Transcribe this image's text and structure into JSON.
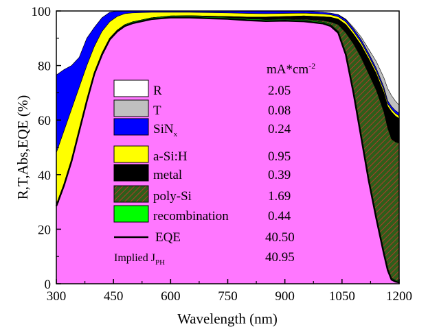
{
  "chart_data": {
    "type": "area",
    "xlabel": "Wavelength (nm)",
    "ylabel": "R,T,Abs,EQE (%)",
    "xlim": [
      300,
      1200
    ],
    "ylim": [
      0,
      100
    ],
    "xticks": [
      300,
      450,
      600,
      750,
      900,
      1050,
      1200
    ],
    "yticks": [
      0,
      20,
      40,
      60,
      80,
      100
    ],
    "x": [
      300,
      320,
      340,
      360,
      380,
      400,
      420,
      440,
      460,
      480,
      500,
      550,
      600,
      650,
      700,
      750,
      800,
      850,
      900,
      950,
      1000,
      1020,
      1040,
      1060,
      1080,
      1100,
      1120,
      1140,
      1160,
      1170,
      1180,
      1190,
      1200
    ],
    "series": [
      {
        "name": "EQE",
        "values": [
          28.5,
          36.0,
          45.0,
          56.0,
          67.0,
          77.0,
          84.0,
          89.5,
          92.5,
          94.5,
          95.5,
          97.0,
          97.6,
          97.6,
          97.3,
          97.1,
          96.6,
          96.3,
          96.4,
          96.2,
          95.4,
          94.5,
          92.0,
          84.0,
          70.0,
          54.0,
          38.0,
          24.0,
          11.0,
          5.0,
          1.5,
          0.8,
          0.5
        ]
      },
      {
        "name": "recombination",
        "values": [
          29.0,
          36.6,
          45.6,
          56.5,
          67.6,
          77.6,
          84.6,
          90.0,
          93.0,
          95.0,
          96.0,
          97.5,
          98.1,
          98.1,
          97.8,
          97.6,
          97.1,
          96.8,
          96.9,
          96.7,
          95.9,
          95.0,
          92.5,
          84.5,
          70.5,
          54.5,
          38.5,
          24.5,
          11.5,
          5.5,
          2.0,
          1.3,
          1.0
        ]
      },
      {
        "name": "poly-Si",
        "values": [
          29.0,
          36.6,
          45.6,
          56.5,
          67.6,
          77.6,
          84.6,
          90.0,
          93.0,
          95.0,
          96.0,
          97.5,
          98.1,
          98.1,
          97.8,
          97.6,
          97.2,
          97.0,
          97.1,
          97.0,
          96.5,
          96.0,
          95.0,
          92.0,
          88.0,
          83.0,
          77.0,
          71.0,
          63.0,
          57.0,
          53.0,
          52.0,
          51.5
        ]
      },
      {
        "name": "metal",
        "values": [
          29.0,
          36.6,
          45.6,
          56.5,
          67.6,
          77.6,
          84.6,
          90.0,
          93.0,
          95.0,
          96.0,
          97.5,
          98.2,
          98.3,
          98.1,
          98.0,
          97.8,
          97.8,
          98.0,
          98.2,
          97.9,
          97.7,
          97.0,
          95.0,
          91.5,
          87.5,
          82.5,
          77.0,
          70.0,
          65.0,
          63.0,
          61.5,
          60.5
        ]
      },
      {
        "name": "a-Si:H",
        "values": [
          48.0,
          56.0,
          64.0,
          72.0,
          80.0,
          87.0,
          92.5,
          96.0,
          98.0,
          99.0,
          99.3,
          99.5,
          99.5,
          99.5,
          99.4,
          99.3,
          99.1,
          99.0,
          99.1,
          99.2,
          98.9,
          98.6,
          97.9,
          96.0,
          92.5,
          88.5,
          83.5,
          78.0,
          71.0,
          66.0,
          64.0,
          62.5,
          61.5
        ]
      },
      {
        "name": "SiNx",
        "values": [
          76.5,
          78.5,
          80.0,
          83.0,
          90.0,
          94.0,
          97.5,
          99.5,
          100.0,
          100.0,
          100.0,
          100.0,
          100.0,
          100.0,
          100.0,
          100.0,
          100.0,
          100.0,
          100.0,
          100.0,
          99.5,
          99.2,
          98.6,
          96.8,
          93.5,
          89.5,
          84.5,
          79.0,
          72.0,
          67.0,
          65.0,
          63.5,
          62.5
        ]
      },
      {
        "name": "T",
        "values": [
          76.5,
          78.5,
          80.0,
          83.0,
          90.0,
          94.0,
          97.5,
          99.5,
          100.0,
          100.0,
          100.0,
          100.0,
          100.0,
          100.0,
          100.0,
          100.0,
          100.0,
          100.0,
          100.0,
          100.0,
          99.5,
          99.2,
          98.7,
          97.0,
          94.0,
          90.5,
          86.0,
          81.5,
          75.5,
          71.5,
          69.0,
          67.0,
          65.5
        ]
      },
      {
        "name": "R",
        "values": [
          100,
          100,
          100,
          100,
          100,
          100,
          100,
          100,
          100,
          100,
          100,
          100,
          100,
          100,
          100,
          100,
          100,
          100,
          100,
          100,
          100,
          100,
          100,
          100,
          100,
          100,
          100,
          100,
          100,
          100,
          100,
          100,
          100
        ]
      }
    ],
    "legend": {
      "header": "mA*cm",
      "header_sup": "-2",
      "items": [
        {
          "key": "R",
          "label": "R",
          "label_sub": "",
          "value": "2.05",
          "color": "#ffffff"
        },
        {
          "key": "T",
          "label": "T",
          "label_sub": "",
          "value": "0.08",
          "color": "#c0c0c0"
        },
        {
          "key": "SiNx",
          "label": "SiN",
          "label_sub": "x",
          "value": "0.24",
          "color": "#0000ff"
        },
        {
          "key": "aSi",
          "label": "a-Si:H",
          "label_sub": "",
          "value": "0.95",
          "color": "#ffff00"
        },
        {
          "key": "metal",
          "label": "metal",
          "label_sub": "",
          "value": "0.39",
          "color": "#000000"
        },
        {
          "key": "polySi",
          "label": "poly-Si",
          "label_sub": "",
          "value": "1.69",
          "color": "#2e5e1a"
        },
        {
          "key": "recomb",
          "label": "recombination",
          "label_sub": "",
          "value": "0.44",
          "color": "#00ff00"
        }
      ],
      "eqe": {
        "label": "EQE",
        "value": "40.50"
      },
      "implied": {
        "label": "Implied J",
        "label_sub": "PH",
        "value": "40.95"
      }
    },
    "colors": {
      "eqe_fill": "#ff77ff",
      "recombination": "#00ff00",
      "poly_si": "#2e5e1a",
      "poly_si_hatch": "#b33a2a",
      "metal": "#000000",
      "a_si_h": "#ffff00",
      "sinx": "#0000ff",
      "t": "#c0c0c0",
      "r": "#ffffff"
    },
    "legend_placement": "center-left",
    "grid": false
  }
}
